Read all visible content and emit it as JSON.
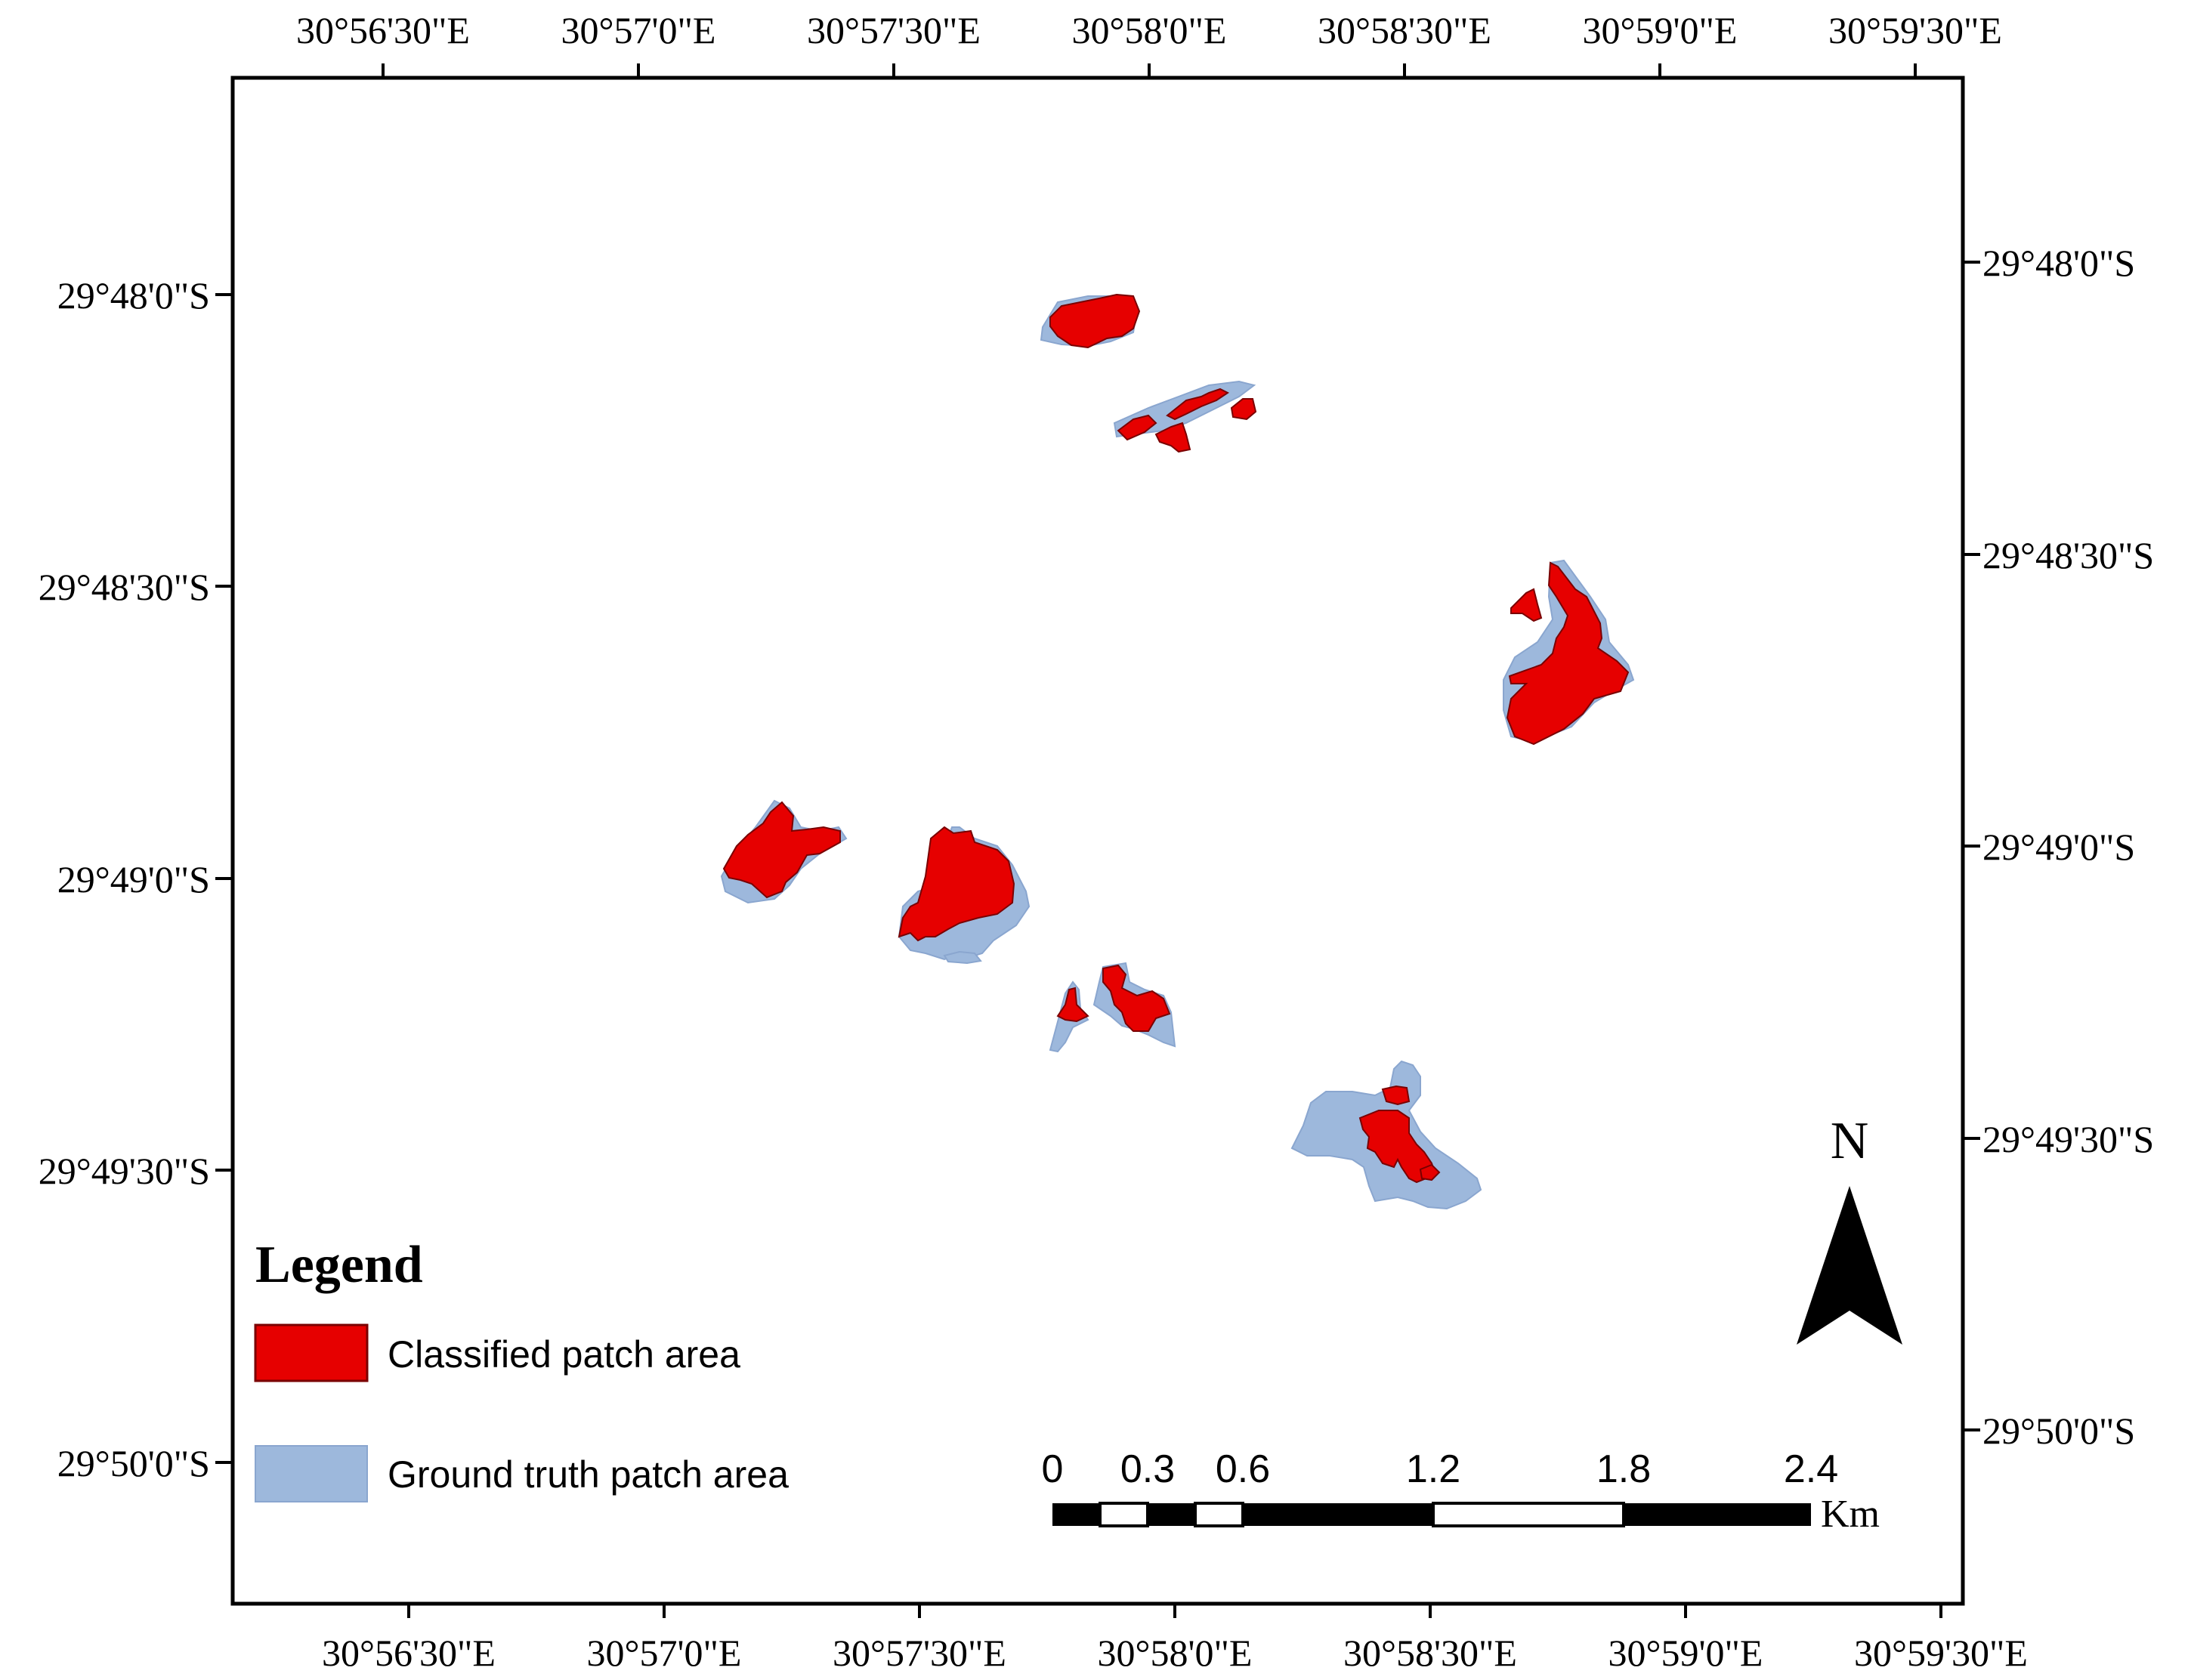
{
  "map": {
    "top_ticks": [
      "30°56'30\"E",
      "30°57'0\"E",
      "30°57'30\"E",
      "30°58'0\"E",
      "30°58'30\"E",
      "30°59'0\"E",
      "30°59'30\"E"
    ],
    "bottom_ticks": [
      "30°56'30\"E",
      "30°57'0\"E",
      "30°57'30\"E",
      "30°58'0\"E",
      "30°58'30\"E",
      "30°59'0\"E",
      "30°59'30\"E"
    ],
    "left_ticks": [
      "29°48'0\"S",
      "29°48'30\"S",
      "29°49'0\"S",
      "29°49'30\"S",
      "29°50'0\"S"
    ],
    "right_ticks": [
      "29°48'0\"S",
      "29°48'30\"S",
      "29°49'0\"S",
      "29°49'30\"S",
      "29°50'0\"S"
    ]
  },
  "legend": {
    "title": "Legend",
    "items": [
      {
        "label": "Classified patch area",
        "color": "#e60000"
      },
      {
        "label": "Ground truth patch area",
        "color": "#9db8dc"
      }
    ]
  },
  "north_arrow": {
    "label": "N"
  },
  "scale_bar": {
    "labels": [
      "0",
      "0.3",
      "0.6",
      "1.2",
      "1.8",
      "2.4"
    ],
    "unit": "Km"
  },
  "colors": {
    "classified": "#e60000",
    "ground_truth": "#9db8dc",
    "frame": "#000000"
  }
}
